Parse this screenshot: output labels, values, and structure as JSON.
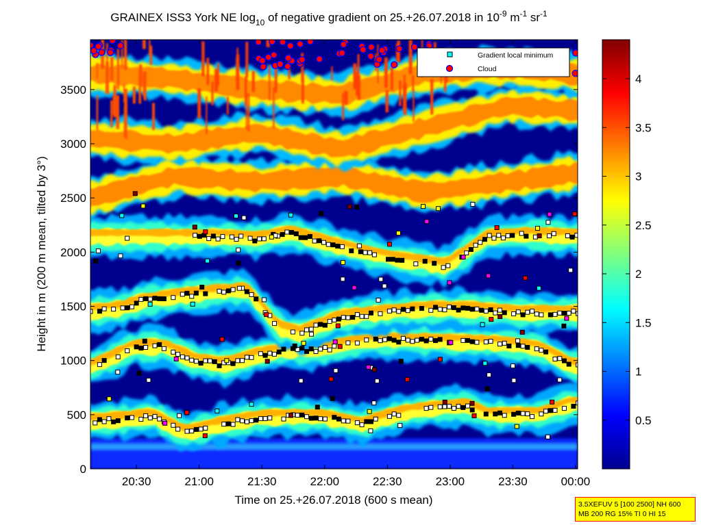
{
  "chart_data": {
    "type": "heatmap",
    "title": {
      "prefix": "GRAINEX ISS3 York NE log",
      "sub": "10",
      "middle": " of negative gradient on 25.+26.07.2018 in 10",
      "exp1": "-9",
      "unit1": " m",
      "exp2": "-1",
      "unit2": " sr",
      "exp3": "-1"
    },
    "xlabel": "Time on 25.+26.07.2018 (600 s mean)",
    "ylabel": "Height in m (200 m mean, tilted by 3°)",
    "x_tick_labels": [
      "20:30",
      "21:00",
      "21:30",
      "22:00",
      "22:30",
      "23:00",
      "23:30",
      "00:00"
    ],
    "y_tick_labels": [
      "0",
      "500",
      "1000",
      "1500",
      "2000",
      "2500",
      "3000",
      "3500"
    ],
    "xlim": [
      "20:08",
      "00:01"
    ],
    "ylim": [
      0,
      3960
    ],
    "colorbar": {
      "ticks": [
        "0.5",
        "1",
        "1.5",
        "2",
        "2.5",
        "3",
        "3.5",
        "4"
      ],
      "range": [
        0,
        4.4
      ],
      "colormap": "jet"
    },
    "legend": {
      "placement": "top-right",
      "entries": [
        "Gradient local minimum",
        "Cloud"
      ]
    },
    "layers": [
      {
        "name": "layer1",
        "values": [
          [
            0,
            440
          ],
          [
            18,
            460
          ],
          [
            30,
            490
          ],
          [
            45,
            330
          ],
          [
            60,
            400
          ],
          [
            80,
            470
          ],
          [
            95,
            480
          ],
          [
            110,
            480
          ],
          [
            130,
            410
          ],
          [
            150,
            520
          ],
          [
            165,
            560
          ],
          [
            180,
            580
          ],
          [
            190,
            500
          ],
          [
            200,
            500
          ],
          [
            215,
            500
          ],
          [
            230,
            600
          ],
          [
            245,
            560
          ],
          [
            260,
            540
          ],
          [
            270,
            560
          ],
          [
            285,
            620
          ],
          [
            300,
            650
          ],
          [
            315,
            680
          ],
          [
            330,
            750
          ],
          [
            345,
            760
          ],
          [
            360,
            720
          ],
          [
            375,
            760
          ],
          [
            390,
            770
          ],
          [
            405,
            790
          ],
          [
            420,
            760
          ],
          [
            435,
            720
          ],
          [
            450,
            650
          ],
          [
            465,
            630
          ],
          [
            480,
            680
          ],
          [
            500,
            640
          ],
          [
            515,
            650
          ],
          [
            525,
            670
          ]
        ]
      },
      {
        "name": "layer2",
        "values": [
          [
            0,
            940
          ],
          [
            10,
            1020
          ],
          [
            20,
            1120
          ],
          [
            35,
            1130
          ],
          [
            50,
            1000
          ],
          [
            65,
            960
          ],
          [
            80,
            1050
          ],
          [
            95,
            1100
          ],
          [
            110,
            1100
          ],
          [
            125,
            1160
          ],
          [
            140,
            1190
          ],
          [
            160,
            1180
          ],
          [
            175,
            1170
          ],
          [
            195,
            1160
          ],
          [
            215,
            1110
          ],
          [
            230,
            950
          ],
          [
            245,
            940
          ],
          [
            260,
            930
          ],
          [
            275,
            910
          ],
          [
            290,
            1050
          ],
          [
            305,
            1100
          ],
          [
            320,
            1080
          ],
          [
            340,
            1070
          ],
          [
            360,
            970
          ],
          [
            380,
            900
          ],
          [
            395,
            900
          ],
          [
            410,
            1000
          ],
          [
            420,
            1070
          ],
          [
            440,
            1090
          ],
          [
            455,
            1070
          ],
          [
            465,
            1100
          ],
          [
            480,
            1180
          ],
          [
            495,
            1140
          ],
          [
            510,
            1140
          ],
          [
            520,
            1170
          ]
        ]
      },
      {
        "name": "layer3",
        "values": [
          [
            0,
            1450
          ],
          [
            15,
            1480
          ],
          [
            25,
            1550
          ],
          [
            45,
            1600
          ],
          [
            60,
            1630
          ],
          [
            75,
            1650
          ],
          [
            90,
            1300
          ],
          [
            100,
            1250
          ],
          [
            120,
            1400
          ],
          [
            145,
            1450
          ],
          [
            165,
            1480
          ],
          [
            185,
            1470
          ],
          [
            205,
            1440
          ],
          [
            230,
            1440
          ],
          [
            245,
            1450
          ],
          [
            260,
            1410
          ],
          [
            275,
            1380
          ],
          [
            290,
            1310
          ],
          [
            300,
            1360
          ],
          [
            310,
            1550
          ],
          [
            330,
            1400
          ],
          [
            345,
            1440
          ],
          [
            360,
            1430
          ],
          [
            375,
            1450
          ],
          [
            390,
            1460
          ],
          [
            400,
            1700
          ],
          [
            415,
            1720
          ],
          [
            430,
            1650
          ],
          [
            445,
            1500
          ],
          [
            460,
            1430
          ],
          [
            475,
            1380
          ],
          [
            490,
            1450
          ],
          [
            505,
            1500
          ],
          [
            525,
            1550
          ]
        ]
      },
      {
        "name": "layer4",
        "values": [
          [
            50,
            2140
          ],
          [
            65,
            2140
          ],
          [
            80,
            2120
          ],
          [
            95,
            2180
          ],
          [
            110,
            2100
          ],
          [
            130,
            2000
          ],
          [
            145,
            1940
          ],
          [
            170,
            1870
          ],
          [
            190,
            2140
          ],
          [
            210,
            2160
          ],
          [
            235,
            2140
          ],
          [
            255,
            2150
          ],
          [
            275,
            2160
          ],
          [
            300,
            2230
          ],
          [
            320,
            2110
          ],
          [
            340,
            2120
          ],
          [
            355,
            2100
          ],
          [
            370,
            2000
          ],
          [
            385,
            1800
          ],
          [
            400,
            1810
          ],
          [
            420,
            1840
          ],
          [
            440,
            1850
          ],
          [
            460,
            2130
          ],
          [
            480,
            1830
          ],
          [
            500,
            1780
          ],
          [
            525,
            1760
          ]
        ]
      }
    ],
    "clouds": {
      "height_range": [
        2500,
        3960
      ],
      "time_windows": [
        "20:10–20:20",
        "21:05–21:30",
        "22:00–22:15",
        "22:35–23:55"
      ]
    }
  },
  "info_box": {
    "line1": "3.5XEFUV 5 [100 2500] NH 600",
    "line2": "MB 200 RG 15% TI 0 HI 15"
  }
}
